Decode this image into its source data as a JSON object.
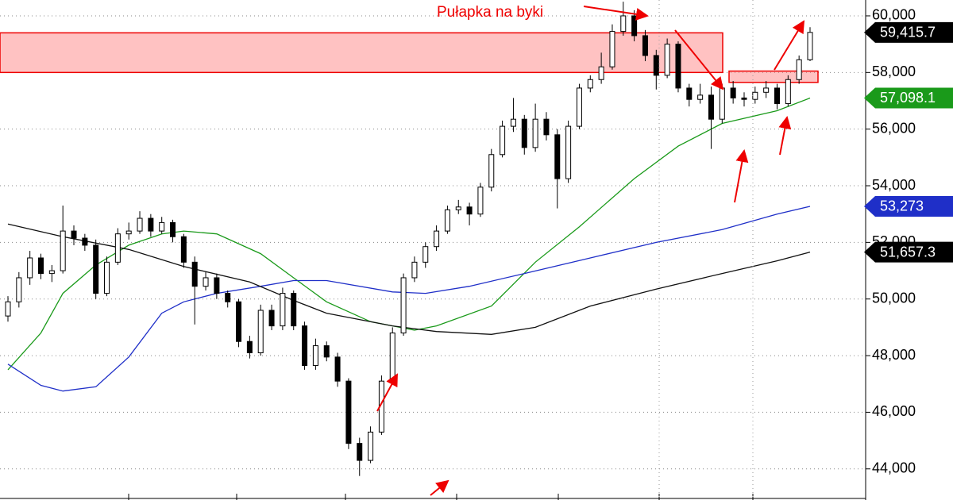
{
  "chart_data": {
    "type": "candlestick",
    "annotation": "Pułapka na byki",
    "ohlc": [
      [
        49400,
        50100,
        49200,
        49900
      ],
      [
        49900,
        50950,
        49700,
        50750
      ],
      [
        50750,
        51700,
        50500,
        51450
      ],
      [
        51450,
        51600,
        50700,
        50900
      ],
      [
        50900,
        51200,
        50600,
        51000
      ],
      [
        51000,
        53300,
        50900,
        52400
      ],
      [
        52400,
        52600,
        51900,
        52150
      ],
      [
        52150,
        52300,
        51700,
        51900
      ],
      [
        51900,
        52100,
        50000,
        50200
      ],
      [
        50200,
        51500,
        50100,
        51300
      ],
      [
        51300,
        52500,
        51200,
        52300
      ],
      [
        52300,
        52700,
        52100,
        52400
      ],
      [
        52400,
        53100,
        52300,
        52850
      ],
      [
        52850,
        53000,
        52200,
        52400
      ],
      [
        52400,
        52900,
        52300,
        52700
      ],
      [
        52700,
        52800,
        52000,
        52200
      ],
      [
        52200,
        52300,
        51100,
        51300
      ],
      [
        51300,
        51500,
        49100,
        50450
      ],
      [
        50450,
        50950,
        50300,
        50750
      ],
      [
        50750,
        50900,
        50000,
        50200
      ],
      [
        50200,
        50300,
        49700,
        49900
      ],
      [
        49900,
        50000,
        48300,
        48500
      ],
      [
        48500,
        48700,
        47900,
        48100
      ],
      [
        48100,
        49800,
        48000,
        49600
      ],
      [
        49600,
        49800,
        48900,
        49050
      ],
      [
        49050,
        50400,
        48900,
        50200
      ],
      [
        50200,
        50300,
        48900,
        49050
      ],
      [
        49050,
        49200,
        47500,
        47650
      ],
      [
        47650,
        48600,
        47500,
        48350
      ],
      [
        48350,
        48500,
        47800,
        47950
      ],
      [
        47950,
        48100,
        46900,
        47100
      ],
      [
        47100,
        47200,
        44700,
        44900
      ],
      [
        44900,
        45100,
        43750,
        44300
      ],
      [
        44300,
        45500,
        44200,
        45300
      ],
      [
        45300,
        47300,
        45200,
        47100
      ],
      [
        47100,
        49000,
        47000,
        48800
      ],
      [
        48800,
        50900,
        48700,
        50750
      ],
      [
        50750,
        51500,
        50600,
        51300
      ],
      [
        51300,
        52000,
        51100,
        51850
      ],
      [
        51850,
        52600,
        51700,
        52400
      ],
      [
        52400,
        53300,
        52300,
        53150
      ],
      [
        53150,
        53500,
        53000,
        53250
      ],
      [
        53250,
        53400,
        52600,
        53000
      ],
      [
        53000,
        54100,
        52900,
        53950
      ],
      [
        53950,
        55300,
        53800,
        55100
      ],
      [
        55100,
        56300,
        55000,
        56100
      ],
      [
        56100,
        57100,
        55900,
        56350
      ],
      [
        56350,
        56500,
        55100,
        55350
      ],
      [
        55350,
        56900,
        55200,
        56350
      ],
      [
        56350,
        56600,
        55600,
        55800
      ],
      [
        55800,
        56000,
        53200,
        54250
      ],
      [
        54250,
        56300,
        54100,
        56100
      ],
      [
        56100,
        57600,
        56000,
        57450
      ],
      [
        57450,
        57900,
        57300,
        57750
      ],
      [
        57750,
        58700,
        57600,
        58200
      ],
      [
        58200,
        59700,
        58100,
        59450
      ],
      [
        59450,
        60500,
        59300,
        60000
      ],
      [
        60000,
        60200,
        59100,
        59300
      ],
      [
        59300,
        59500,
        58400,
        58600
      ],
      [
        58600,
        58800,
        57400,
        57900
      ],
      [
        57900,
        59200,
        57800,
        59000
      ],
      [
        59000,
        59100,
        57300,
        57450
      ],
      [
        57450,
        57600,
        56800,
        57050
      ],
      [
        57050,
        57600,
        56900,
        57200
      ],
      [
        57200,
        57500,
        55300,
        56350
      ],
      [
        56350,
        57600,
        56200,
        57450
      ],
      [
        57450,
        57700,
        56900,
        57100
      ],
      [
        57100,
        57300,
        56800,
        57050
      ],
      [
        57050,
        57500,
        56900,
        57300
      ],
      [
        57300,
        57700,
        57100,
        57450
      ],
      [
        57450,
        57600,
        56700,
        56900
      ],
      [
        56900,
        57900,
        56800,
        57750
      ],
      [
        57750,
        58600,
        57600,
        58450
      ],
      [
        58450,
        59600,
        58400,
        59415.7
      ]
    ],
    "up_color": "#ffffff",
    "down_color": "#000000",
    "lines": [
      {
        "color": "#1a9a1a",
        "x": [
          0,
          3,
          5,
          8,
          11,
          14,
          16,
          19,
          23,
          26,
          29,
          33,
          37,
          39,
          44,
          48,
          52,
          57,
          61,
          65,
          70,
          73
        ],
        "values": [
          47500,
          48800,
          50200,
          51200,
          51900,
          52300,
          52400,
          52300,
          51600,
          50750,
          49900,
          49200,
          48900,
          49050,
          49750,
          51300,
          52550,
          54250,
          55400,
          56200,
          56650,
          57098.1
        ]
      },
      {
        "color": "#1f2fc8",
        "x": [
          0,
          3,
          5,
          8,
          11,
          14,
          16,
          19,
          23,
          26,
          29,
          35,
          38,
          42,
          47,
          53,
          59,
          65,
          70,
          73
        ],
        "values": [
          47700,
          46950,
          46750,
          46900,
          47950,
          49500,
          49900,
          50200,
          50450,
          50650,
          50650,
          50250,
          50200,
          50450,
          50900,
          51450,
          52000,
          52450,
          53000,
          53273
        ]
      },
      {
        "color": "#111111",
        "x": [
          0,
          5,
          11,
          16,
          22,
          26,
          29,
          35,
          39,
          44,
          48,
          53,
          59,
          65,
          70,
          73
        ],
        "values": [
          52650,
          52200,
          51750,
          51150,
          50600,
          49950,
          49500,
          49050,
          48850,
          48750,
          49000,
          49750,
          50350,
          50900,
          51350,
          51657.3
        ]
      }
    ],
    "zones": [
      {
        "low": 58000,
        "high": 59400
      },
      {
        "low": 57650,
        "high": 58050
      }
    ],
    "price_tags": [
      {
        "value": 59415.7,
        "label": "59,415.7",
        "color": "#000000"
      },
      {
        "value": 57098.1,
        "label": "57,098.1",
        "color": "#1a9a1a"
      },
      {
        "value": 53273,
        "label": "53,273",
        "color": "#1f2fc8"
      },
      {
        "value": 51657.3,
        "label": "51,657.3",
        "color": "#000000"
      }
    ],
    "ylim": [
      42900,
      60560
    ],
    "yticks": [
      {
        "value": 44000,
        "label": "44,000"
      },
      {
        "value": 46000,
        "label": "46,000"
      },
      {
        "value": 48000,
        "label": "48,000"
      },
      {
        "value": 50000,
        "label": "50,000"
      },
      {
        "value": 52000,
        "label": "52,000"
      },
      {
        "value": 54000,
        "label": "54,000"
      },
      {
        "value": 56000,
        "label": "56,000"
      },
      {
        "value": 58000,
        "label": "58,000"
      },
      {
        "value": 60000,
        "label": "60,000"
      }
    ],
    "grid": true
  }
}
